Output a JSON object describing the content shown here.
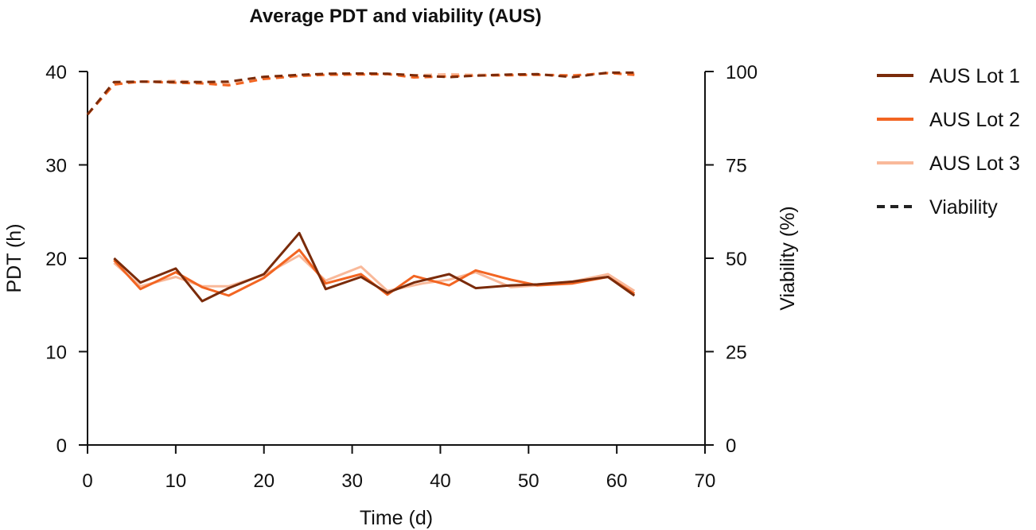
{
  "chart_data": {
    "type": "line",
    "title": "Average PDT and viability (AUS)",
    "xlabel": "Time (d)",
    "ylabel": "PDT (h)",
    "y2label": "Viability (%)",
    "xlim": [
      0,
      70
    ],
    "ylim": [
      0,
      40
    ],
    "y2lim": [
      0,
      100
    ],
    "xticks": [
      0,
      10,
      20,
      30,
      40,
      50,
      60,
      70
    ],
    "yticks": [
      0,
      10,
      20,
      30,
      40
    ],
    "y2ticks": [
      0,
      25,
      50,
      75,
      100
    ],
    "grid": false,
    "legend_position": "right",
    "legend": [
      {
        "label": "AUS Lot 1",
        "color": "#7a2b0a",
        "style": "solid"
      },
      {
        "label": "AUS Lot 2",
        "color": "#f26522",
        "style": "solid"
      },
      {
        "label": "AUS Lot 3",
        "color": "#f9b99a",
        "style": "solid"
      },
      {
        "label": "Viability",
        "color": "#222222",
        "style": "dashed"
      }
    ],
    "series": [
      {
        "lot": "AUS Lot 3",
        "color": "#f9b99a",
        "axis": "left",
        "x": [
          3,
          6,
          10,
          13,
          16,
          20,
          24,
          27,
          31,
          34,
          38,
          41,
          44,
          48,
          51,
          55,
          59,
          62
        ],
        "y": [
          19.5,
          17.0,
          18.0,
          17.0,
          17.0,
          18.2,
          20.3,
          17.6,
          19.1,
          16.5,
          17.3,
          17.7,
          18.5,
          16.9,
          17.1,
          17.5,
          18.3,
          16.5
        ]
      },
      {
        "lot": "AUS Lot 2",
        "color": "#f26522",
        "axis": "left",
        "x": [
          3,
          6,
          10,
          13,
          16,
          20,
          24,
          27,
          31,
          34,
          37,
          41,
          44,
          48,
          51,
          55,
          59,
          62
        ],
        "y": [
          19.8,
          16.7,
          18.5,
          16.9,
          16.0,
          17.9,
          20.9,
          17.3,
          18.3,
          16.1,
          18.1,
          17.1,
          18.7,
          17.7,
          17.1,
          17.3,
          18.0,
          16.2
        ]
      },
      {
        "lot": "AUS Lot 1",
        "color": "#7a2b0a",
        "axis": "left",
        "x": [
          3,
          6,
          10,
          13,
          16,
          20,
          24,
          27,
          31,
          34,
          37,
          41,
          44,
          48,
          51,
          55,
          59,
          62
        ],
        "y": [
          20.0,
          17.4,
          18.9,
          15.4,
          16.8,
          18.3,
          22.7,
          16.7,
          18.0,
          16.3,
          17.4,
          18.3,
          16.8,
          17.1,
          17.2,
          17.5,
          18.0,
          16.0
        ]
      },
      {
        "lot": "AUS Lot 3",
        "color": "#f9b99a",
        "axis": "right",
        "x": [
          0,
          3,
          6,
          10,
          13,
          16,
          20,
          24,
          27,
          31,
          34,
          37,
          41,
          44,
          48,
          51,
          55,
          59,
          62
        ],
        "y": [
          88.5,
          96.8,
          97.3,
          97.5,
          97.2,
          96.8,
          98.3,
          98.9,
          99.2,
          99.3,
          99.4,
          99.0,
          99.3,
          99.1,
          99.2,
          99.2,
          99.0,
          99.5,
          99.5
        ]
      },
      {
        "lot": "AUS Lot 2",
        "color": "#f26522",
        "axis": "right",
        "x": [
          0,
          3,
          6,
          10,
          13,
          16,
          20,
          24,
          27,
          31,
          34,
          37,
          41,
          44,
          48,
          51,
          55,
          59,
          62
        ],
        "y": [
          88.5,
          96.5,
          97.3,
          97.0,
          96.8,
          96.3,
          98.0,
          98.8,
          99.1,
          99.2,
          99.3,
          98.4,
          98.7,
          98.9,
          99.0,
          99.1,
          98.9,
          99.6,
          99.1
        ]
      },
      {
        "lot": "AUS Lot 1",
        "color": "#7a2b0a",
        "axis": "right",
        "x": [
          0,
          3,
          6,
          10,
          13,
          16,
          20,
          24,
          27,
          31,
          34,
          37,
          41,
          44,
          48,
          51,
          55,
          59,
          62
        ],
        "y": [
          88.5,
          97.2,
          97.3,
          97.2,
          97.2,
          97.3,
          98.6,
          99.1,
          99.4,
          99.5,
          99.4,
          99.0,
          98.5,
          98.9,
          99.2,
          99.3,
          98.5,
          99.7,
          99.7
        ]
      }
    ]
  }
}
